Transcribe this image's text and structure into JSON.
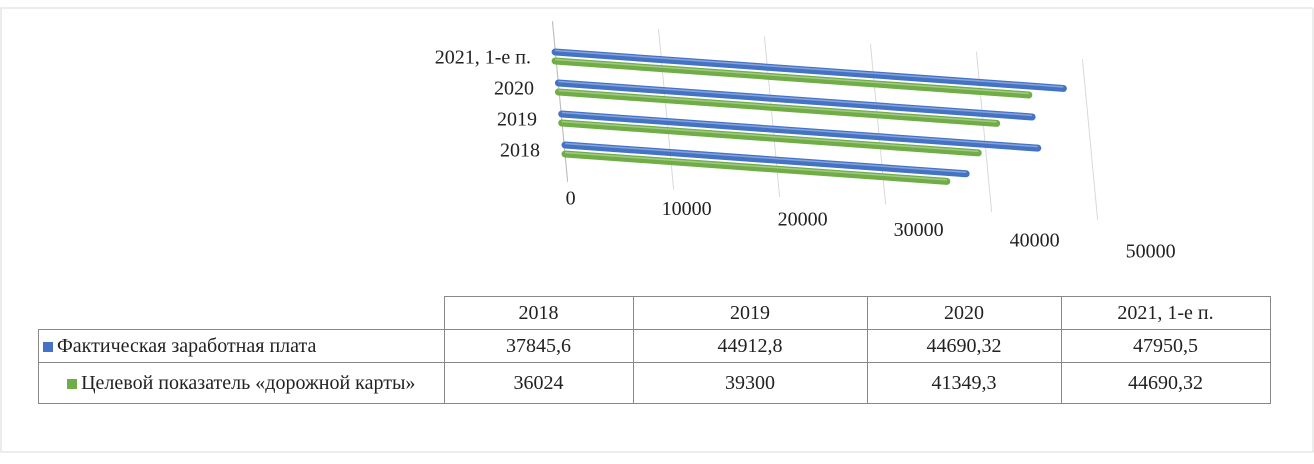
{
  "chart_data": {
    "type": "bar3d",
    "categories": [
      "2018",
      "2019",
      "2020",
      "2021, 1-е п."
    ],
    "series": [
      {
        "name": "Фактическая заработная плата",
        "color": "#4472c4",
        "values": [
          37845.6,
          44912.8,
          44690.32,
          47950.5
        ],
        "value_labels": [
          "37845,6",
          "44912,8",
          "44690,32",
          "47950,5"
        ]
      },
      {
        "name": "Целевой показатель «дорожной карты»",
        "color": "#70ad47",
        "values": [
          36024,
          39300,
          41349.3,
          44690.32
        ],
        "value_labels": [
          "36024",
          "39300",
          "41349,3",
          "44690,32"
        ]
      }
    ],
    "xlim": [
      0,
      50000
    ],
    "xticks": [
      0,
      10000,
      20000,
      30000,
      40000,
      50000
    ],
    "grid": true
  }
}
